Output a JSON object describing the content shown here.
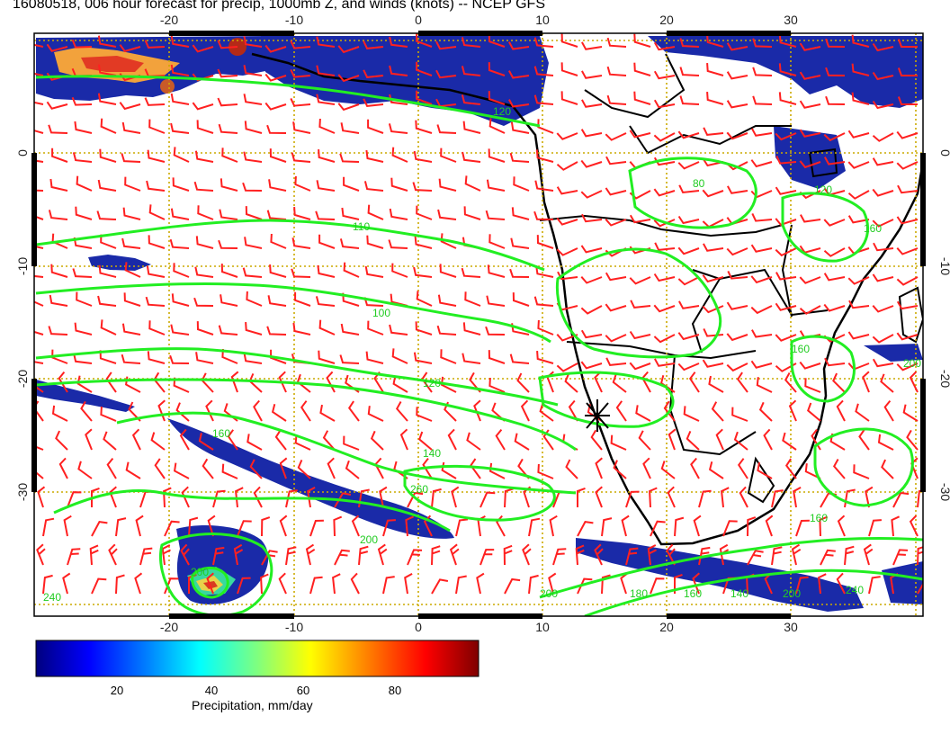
{
  "title": "16080518, 006 hour forecast for precip, 1000mb Z, and winds (knots) -- NCEP GFS",
  "axes": {
    "lon_labels": [
      "-20",
      "-10",
      "0",
      "10",
      "20",
      "30"
    ],
    "lat_labels": [
      "0",
      "-10",
      "-20",
      "-30"
    ],
    "lon_range": [
      -30,
      40
    ],
    "lat_range": [
      -40,
      10
    ]
  },
  "contour_labels": [
    "120",
    "80",
    "120",
    "160",
    "110",
    "100",
    "120",
    "140",
    "160",
    "200",
    "240",
    "200",
    "260",
    "160",
    "200",
    "180",
    "160",
    "140",
    "200",
    "240",
    "160",
    "200"
  ],
  "colorbar": {
    "label": "Precipitation, mm/day",
    "ticks": [
      "20",
      "40",
      "60",
      "80"
    ],
    "range": [
      0,
      100
    ],
    "colors": [
      "#00007f",
      "#0000ff",
      "#007fff",
      "#00ffff",
      "#7fff7f",
      "#ffff00",
      "#ff7f00",
      "#ff0000",
      "#7f0000"
    ]
  },
  "colors": {
    "precip": "#1a2aa8",
    "contour": "#22ee22",
    "wind_barb": "#ff2020",
    "grid": "#ccaa00",
    "coast": "#000000"
  },
  "marker": "NWS site (X) near 14E, 23S"
}
